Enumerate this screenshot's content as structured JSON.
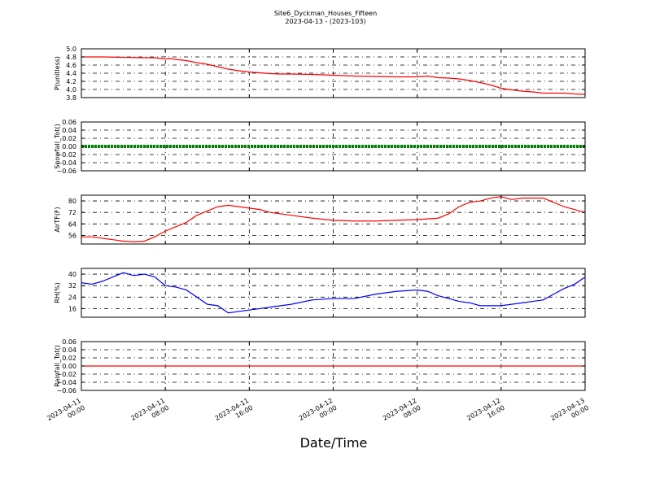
{
  "chart_data": {
    "type": "line",
    "title": "Site6_Dyckman_Houses_Fifteen",
    "subtitle": "2023-04-13 - (2023-103)",
    "xlabel": "Date/Time",
    "x_ticks": [
      "2023-04-11\n00:00",
      "2023-04-11\n08:00",
      "2023-04-11\n16:00",
      "2023-04-12\n00:00",
      "2023-04-12\n08:00",
      "2023-04-12\n16:00",
      "2023-04-13\n00:00"
    ],
    "x_range_hours": [
      0,
      48
    ],
    "grid": true,
    "panels": [
      {
        "ylabel": "P(unitless)",
        "ylim": [
          3.8,
          5.0
        ],
        "yticks": [
          "5.0",
          "4.8",
          "4.6",
          "4.4",
          "4.2",
          "4.0",
          "3.8"
        ],
        "series": [
          {
            "color": "#ff0000",
            "x": [
              0,
              2,
              4,
              6,
              7,
              8,
              8.5,
              9,
              10,
              11,
              12,
              13,
              14,
              15,
              16,
              17,
              18,
              19,
              20,
              22,
              24,
              26,
              28,
              30,
              32,
              33,
              34,
              35,
              36,
              37,
              38,
              39,
              40,
              41,
              42,
              43,
              44,
              45,
              46,
              47,
              48
            ],
            "y": [
              4.8,
              4.8,
              4.79,
              4.78,
              4.78,
              4.75,
              4.76,
              4.74,
              4.71,
              4.66,
              4.62,
              4.56,
              4.5,
              4.46,
              4.43,
              4.41,
              4.39,
              4.38,
              4.38,
              4.37,
              4.35,
              4.33,
              4.32,
              4.31,
              4.31,
              4.33,
              4.29,
              4.28,
              4.26,
              4.22,
              4.17,
              4.11,
              4.03,
              3.99,
              3.96,
              3.94,
              3.91,
              3.91,
              3.91,
              3.89,
              3.88
            ]
          }
        ]
      },
      {
        "ylabel": "Snowfall_Tot()",
        "ylim": [
          -0.06,
          0.06
        ],
        "yticks": [
          "0.06",
          "0.04",
          "0.02",
          "0.00",
          "−0.02",
          "−0.04",
          "−0.06"
        ],
        "series": [
          {
            "color": "#008000",
            "style": "thick",
            "x": [
              0,
              48
            ],
            "y": [
              0,
              0
            ]
          }
        ]
      },
      {
        "ylabel": "AirTF(F)",
        "ylim": [
          50,
          84
        ],
        "yticks": [
          "80",
          "72",
          "64",
          "56"
        ],
        "ytick_values": [
          80,
          72,
          64,
          56
        ],
        "series": [
          {
            "color": "#ff0000",
            "x": [
              0,
              1,
              2,
              3,
              4,
              5,
              6,
              7,
              8,
              9,
              10,
              11,
              12,
              13,
              14,
              15,
              16,
              17,
              18,
              19,
              20,
              22,
              24,
              26,
              28,
              30,
              32,
              34,
              35,
              36,
              37,
              38,
              39,
              40,
              41,
              42,
              43,
              44,
              45,
              46,
              47,
              48
            ],
            "y": [
              55,
              55,
              54,
              53,
              52,
              51.5,
              52,
              55,
              59,
              62,
              65,
              70,
              73,
              76,
              77,
              76,
              75,
              74,
              72,
              71,
              70,
              68,
              66.5,
              66,
              66,
              66.5,
              67,
              68,
              71,
              76,
              79,
              80,
              82,
              83,
              81,
              82,
              82,
              82,
              79,
              76,
              74,
              72
            ]
          }
        ]
      },
      {
        "ylabel": "RH(%)",
        "ylim": [
          10,
          44
        ],
        "yticks": [
          "40",
          "32",
          "24",
          "16"
        ],
        "ytick_values": [
          40,
          32,
          24,
          16
        ],
        "series": [
          {
            "color": "#0000ff",
            "x": [
              0,
              1,
              2,
              3,
              4,
              5,
              6,
              7,
              8,
              9,
              10,
              11,
              12,
              13,
              14,
              15,
              16,
              17,
              18,
              19,
              20,
              22,
              24,
              26,
              28,
              30,
              32,
              33,
              34,
              35,
              36,
              37,
              38,
              39,
              40,
              41,
              42,
              43,
              44,
              45,
              46,
              47,
              48
            ],
            "y": [
              34,
              33,
              35,
              38,
              41,
              39,
              40,
              38,
              32,
              31,
              29,
              24,
              19,
              18,
              13,
              14,
              15,
              16,
              17,
              18,
              19,
              22,
              23,
              23,
              26,
              28,
              29,
              28,
              25,
              23,
              21,
              20,
              18,
              18,
              18,
              19,
              20,
              21,
              22,
              26,
              30,
              33,
              38
            ]
          }
        ]
      },
      {
        "ylabel": "Rainfall_Tot()",
        "ylim": [
          -0.06,
          0.06
        ],
        "yticks": [
          "0.06",
          "0.04",
          "0.02",
          "0.00",
          "−0.02",
          "−0.04",
          "−0.06"
        ],
        "series": [
          {
            "color": "#ff0000",
            "x": [
              0,
              48
            ],
            "y": [
              0,
              0
            ]
          }
        ]
      }
    ]
  }
}
